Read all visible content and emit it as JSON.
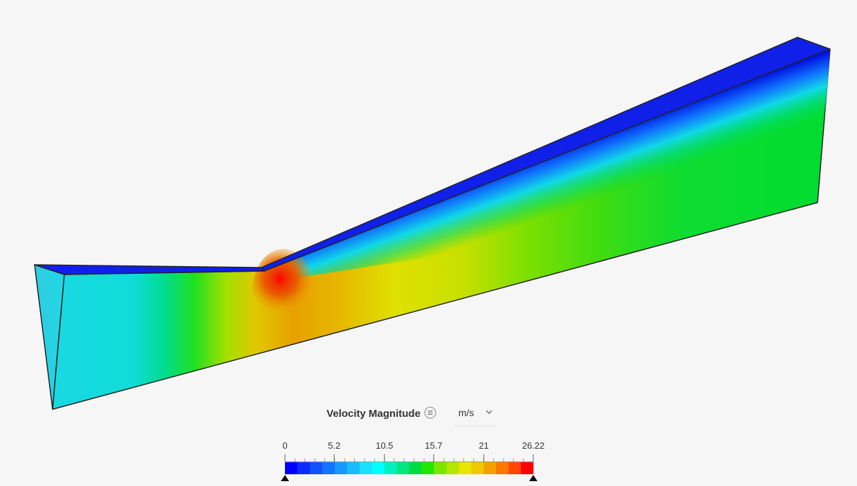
{
  "legend": {
    "title": "Velocity Magnitude",
    "unit": "m/s",
    "ticks": [
      0,
      5.2,
      10.5,
      15.7,
      21,
      26.22
    ],
    "colors": [
      "#0000ff",
      "#0a2cff",
      "#0f50ff",
      "#1274ff",
      "#1598ff",
      "#18bcff",
      "#1ae0ff",
      "#00ffff",
      "#00f0c0",
      "#00e680",
      "#00dc40",
      "#20e600",
      "#7ae600",
      "#b4e600",
      "#e6e600",
      "#f0c800",
      "#f5a000",
      "#fa7800",
      "#ff4600",
      "#ff0000"
    ]
  }
}
